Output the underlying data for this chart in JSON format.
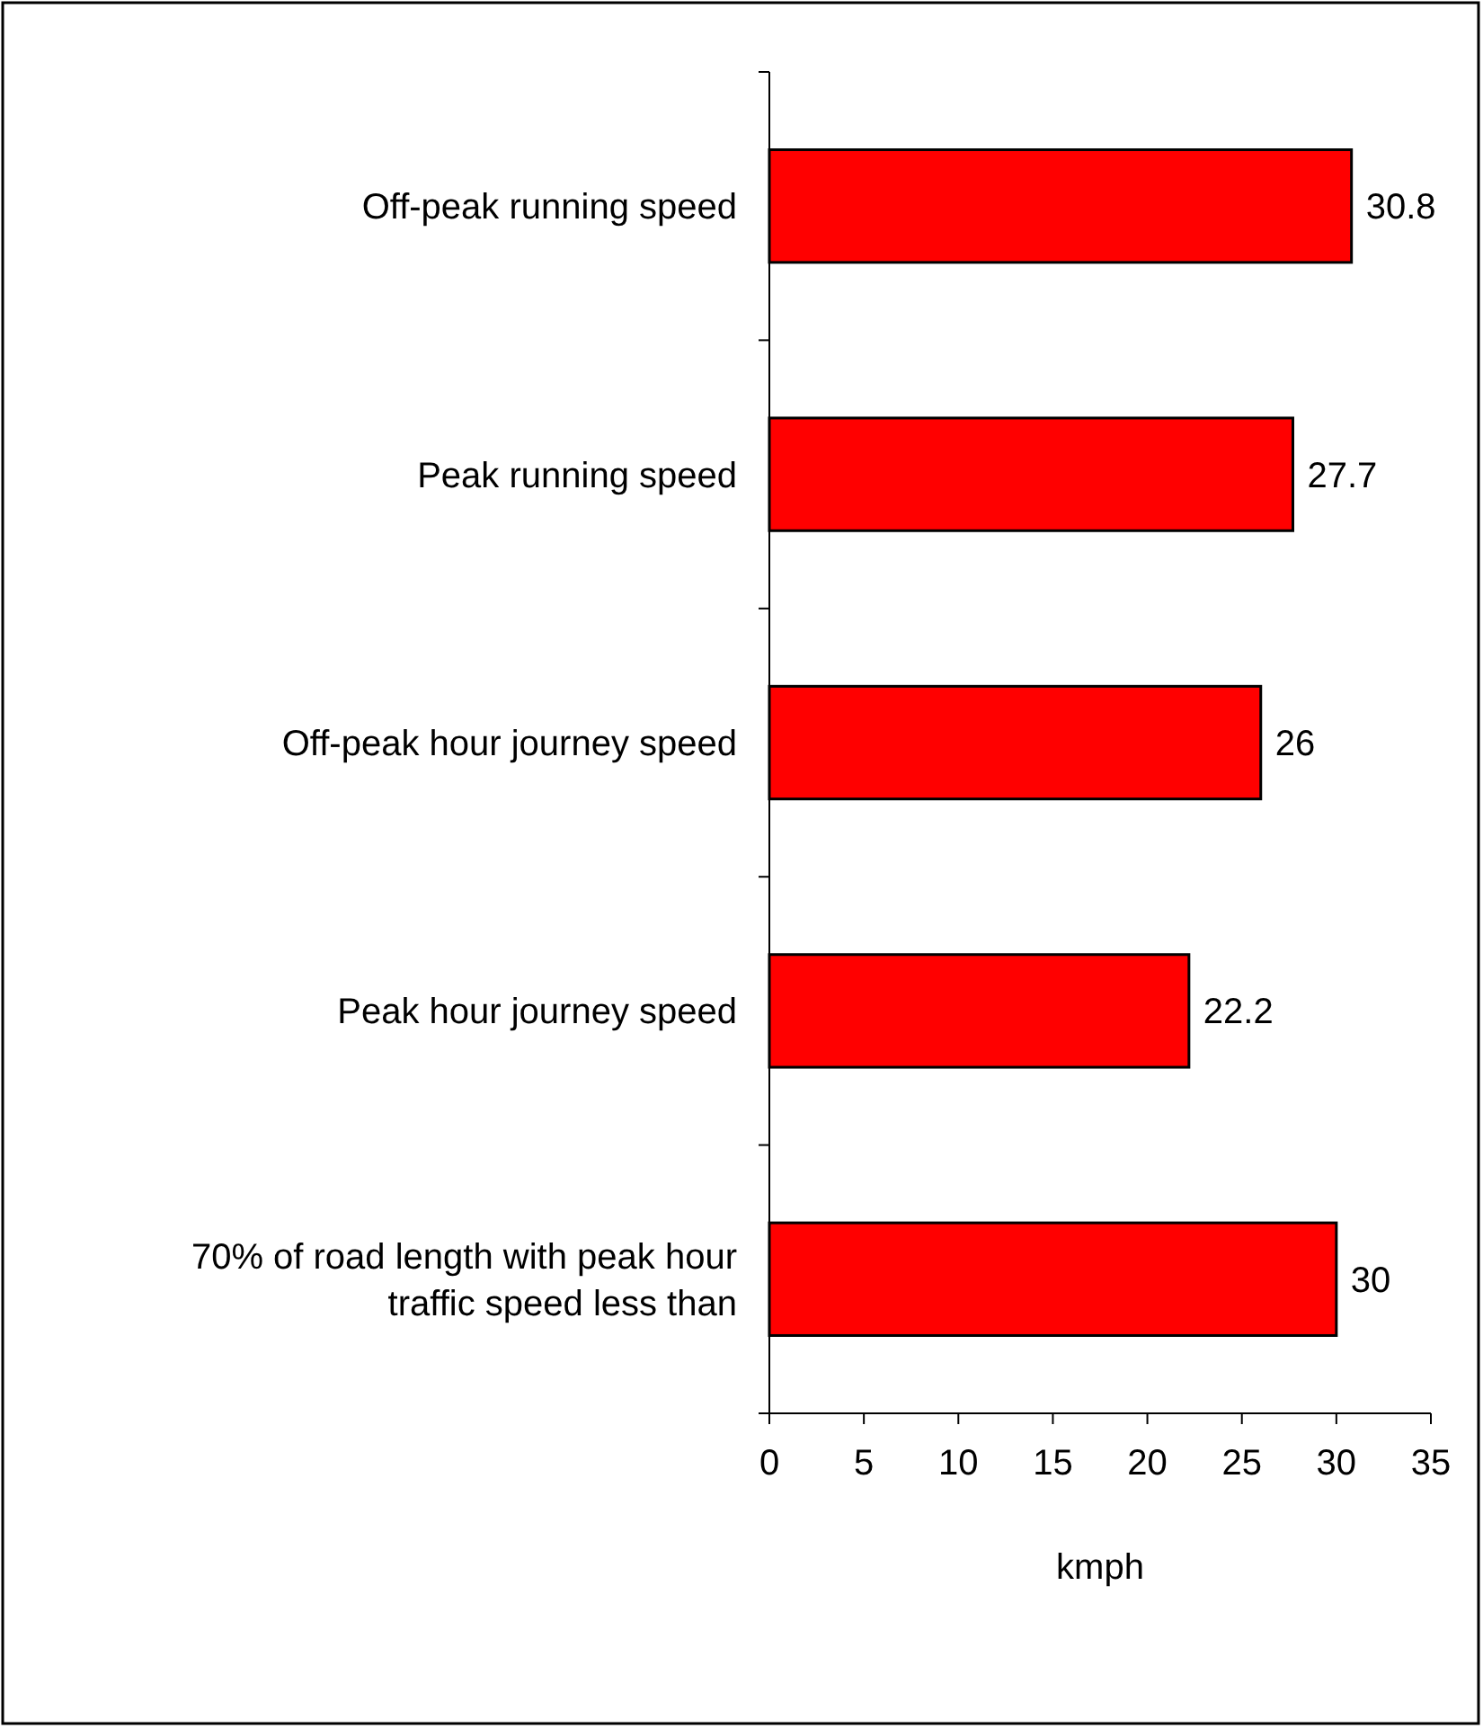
{
  "chart_data": {
    "type": "bar",
    "orientation": "horizontal",
    "categories": [
      "Off-peak running speed",
      "Peak running speed",
      "Off-peak hour journey speed",
      "Peak hour journey speed",
      "70% of road length with peak hour traffic speed less than"
    ],
    "values": [
      30.8,
      27.7,
      26,
      22.2,
      30
    ],
    "color": "#ff0000",
    "xlim": [
      0,
      35
    ],
    "xticks": [
      0,
      5,
      10,
      15,
      20,
      25,
      30,
      35
    ],
    "xlabel": "kmph",
    "data_labels": true
  }
}
